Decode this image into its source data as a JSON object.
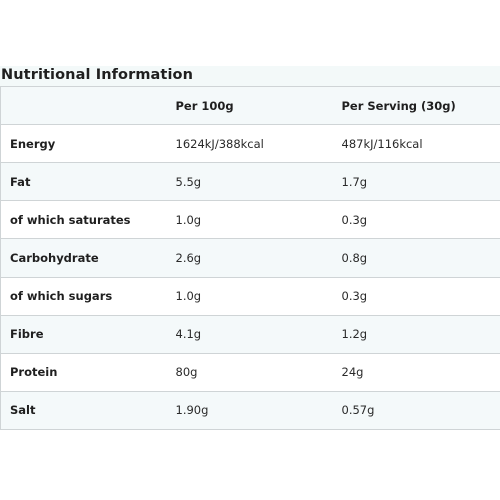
{
  "title": "Nutritional Information",
  "table": {
    "headers": [
      "",
      "Per 100g",
      "Per Serving (30g)"
    ],
    "rows": [
      [
        "Energy",
        "1624kJ/388kcal",
        "487kJ/116kcal"
      ],
      [
        "Fat",
        "5.5g",
        "1.7g"
      ],
      [
        "of which saturates",
        "1.0g",
        "0.3g"
      ],
      [
        "Carbohydrate",
        "2.6g",
        "0.8g"
      ],
      [
        "of which sugars",
        "1.0g",
        "0.3g"
      ],
      [
        "Fibre",
        "4.1g",
        "1.2g"
      ],
      [
        "Protein",
        "80g",
        "24g"
      ],
      [
        "Salt",
        "1.90g",
        "0.57g"
      ]
    ]
  },
  "colors": {
    "band": "#f4f9fa",
    "border": "#cfd4d6",
    "text": "#1f1f1f"
  }
}
